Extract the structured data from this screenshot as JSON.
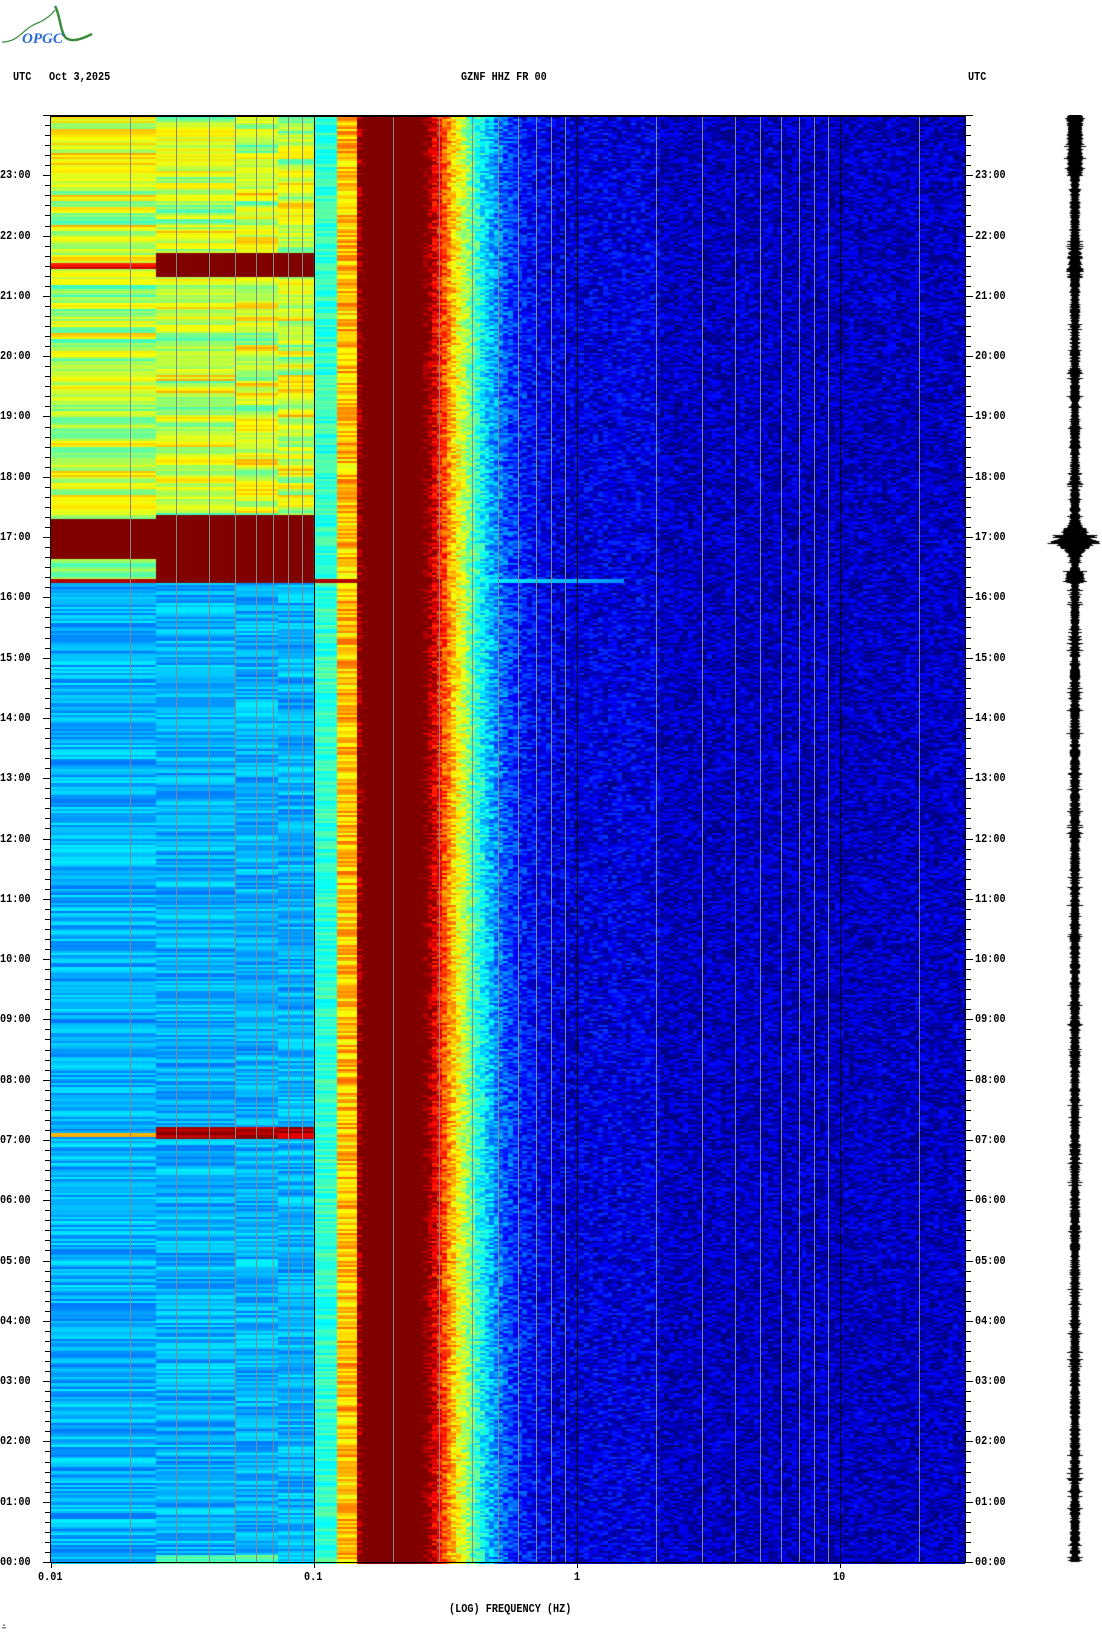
{
  "header": {
    "logo_text": "OPGC",
    "left_timezone": "UTC",
    "date": "Oct 3,2025",
    "station": "GZNF HHZ FR 00",
    "right_timezone": "UTC"
  },
  "footer_mark": "∴",
  "colors": {
    "logo_green": "#3a8a3a",
    "logo_blue": "#2a6ad8",
    "grid_minor": "#888888",
    "grid_decade": "#000000",
    "trace": "#000000"
  },
  "chart_data": {
    "type": "heatmap",
    "title": "GZNF HHZ FR 00",
    "xlabel": "(LOG) FREQUENCY (HZ)",
    "xscale": "log",
    "xlim": [
      0.01,
      30
    ],
    "x_ticks": [
      "0.01",
      "0.1",
      "1",
      "10"
    ],
    "x_tick_values": [
      0.01,
      0.1,
      1,
      10
    ],
    "ylim": [
      "00:00",
      "24:00"
    ],
    "y_ticks": [
      "00:00",
      "01:00",
      "02:00",
      "03:00",
      "04:00",
      "05:00",
      "06:00",
      "07:00",
      "08:00",
      "09:00",
      "10:00",
      "11:00",
      "12:00",
      "13:00",
      "14:00",
      "15:00",
      "16:00",
      "17:00",
      "18:00",
      "19:00",
      "20:00",
      "21:00",
      "22:00",
      "23:00"
    ],
    "colormap": "jet",
    "grid": true,
    "microseism_peak_hz": [
      0.15,
      0.25
    ],
    "events": [
      {
        "time": "07:10",
        "fmin_hz": 0.01,
        "fmax_hz": 0.1
      },
      {
        "time": "16:20",
        "fmin_hz": 0.01,
        "fmax_hz": 1.5
      },
      {
        "time": "16:20-17:30",
        "fmin_hz": 0.01,
        "fmax_hz": 0.3
      },
      {
        "time": "21:30",
        "fmin_hz": 0.01,
        "fmax_hz": 0.1
      }
    ],
    "seismogram": {
      "largest_signal_time": "17:00"
    }
  }
}
